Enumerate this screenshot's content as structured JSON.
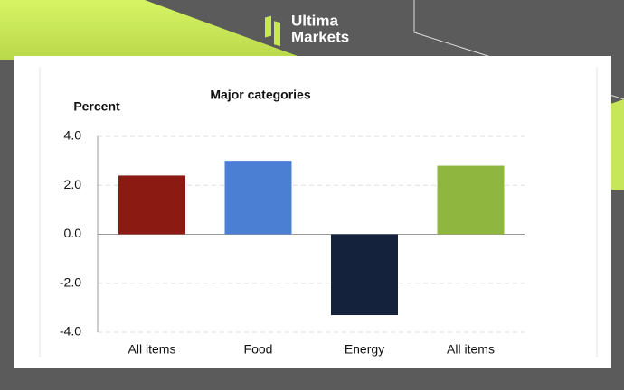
{
  "brand": {
    "line1": "Ultima",
    "line2": "Markets"
  },
  "chart_data": {
    "type": "bar",
    "title": "Major categories",
    "y_label": "Percent",
    "categories": [
      "All items",
      "Food",
      "Energy",
      "All items"
    ],
    "values": [
      2.4,
      3.0,
      -3.3,
      2.8
    ],
    "colors": [
      "#8b1a12",
      "#4a7fd4",
      "#14233b",
      "#8fb73f"
    ],
    "ylim": [
      -4,
      4
    ],
    "yticks": [
      {
        "value": -4,
        "label": "-4.0"
      },
      {
        "value": -2,
        "label": "-2.0"
      },
      {
        "value": 0,
        "label": "0.0"
      },
      {
        "value": 2,
        "label": "2.0"
      },
      {
        "value": 4,
        "label": "4.0"
      }
    ],
    "grid": true
  }
}
